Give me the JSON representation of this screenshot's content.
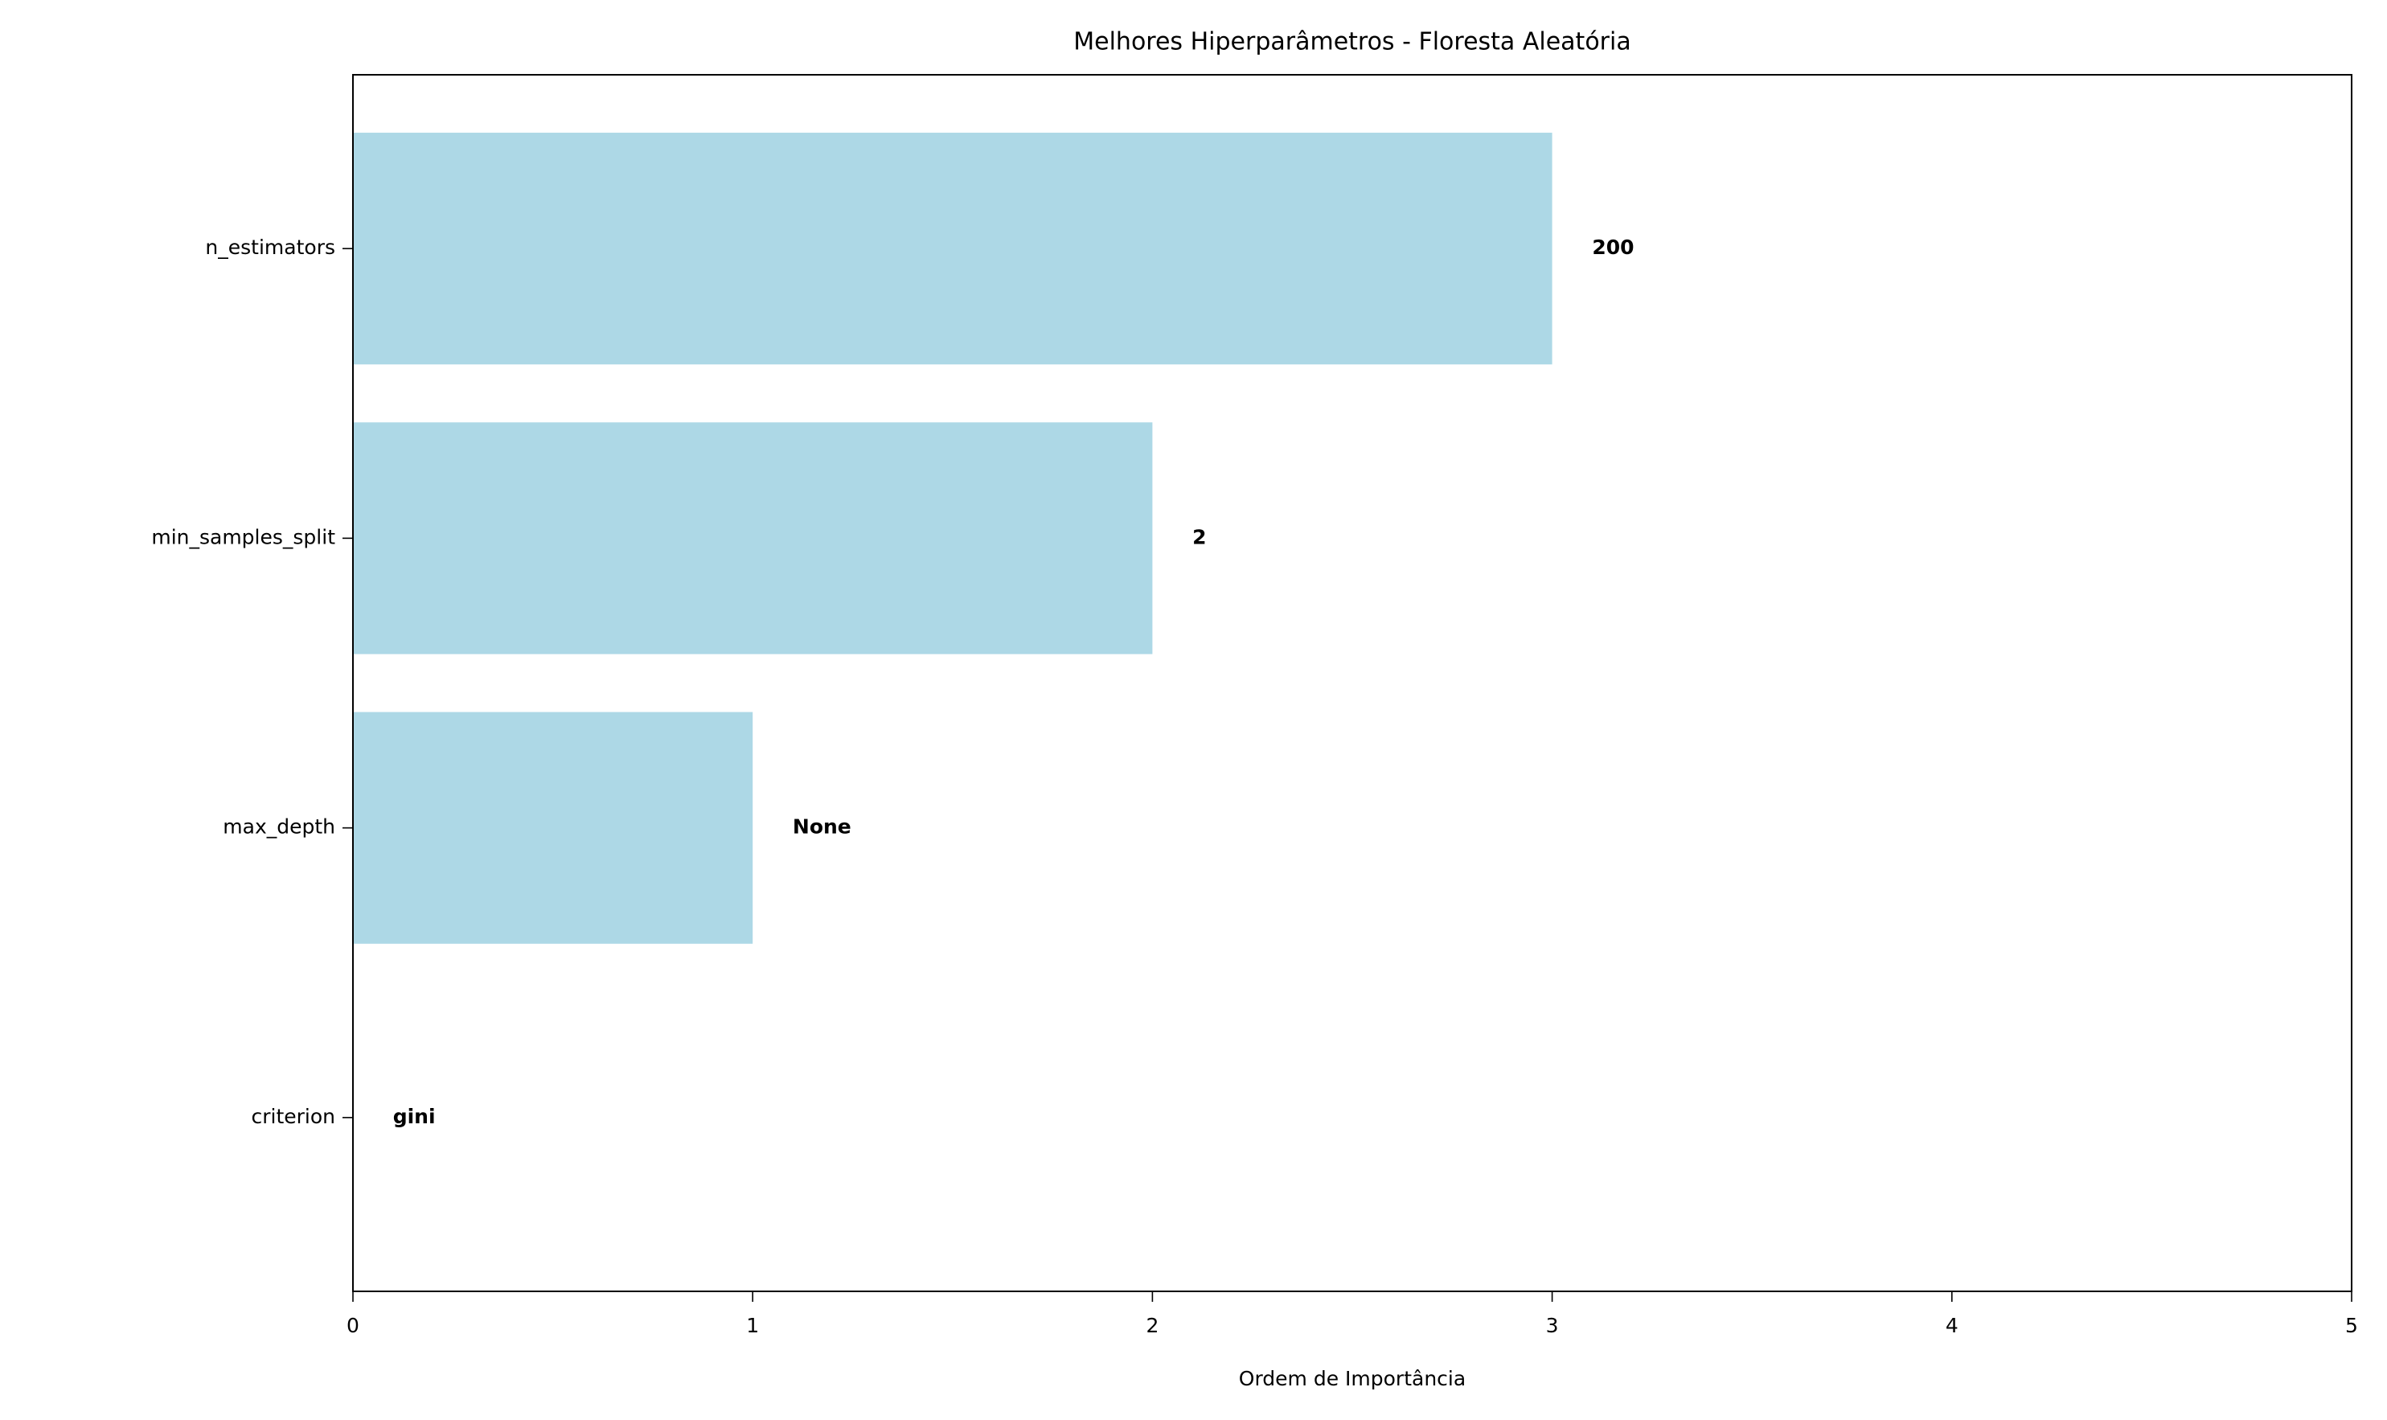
{
  "chart_data": {
    "type": "barh",
    "title": "Melhores Hiperparâmetros - Floresta Aleatória",
    "x_label": "Ordem de Importância",
    "categories": [
      "n_estimators",
      "min_samples_split",
      "max_depth",
      "criterion"
    ],
    "values": [
      3,
      2,
      1,
      0
    ],
    "bar_annotations": [
      "200",
      "2",
      "None",
      "gini"
    ],
    "color": "#add8e6",
    "xlim": [
      0,
      5
    ],
    "xticks": [
      0,
      1,
      2,
      3,
      4,
      5
    ],
    "grid": false
  }
}
